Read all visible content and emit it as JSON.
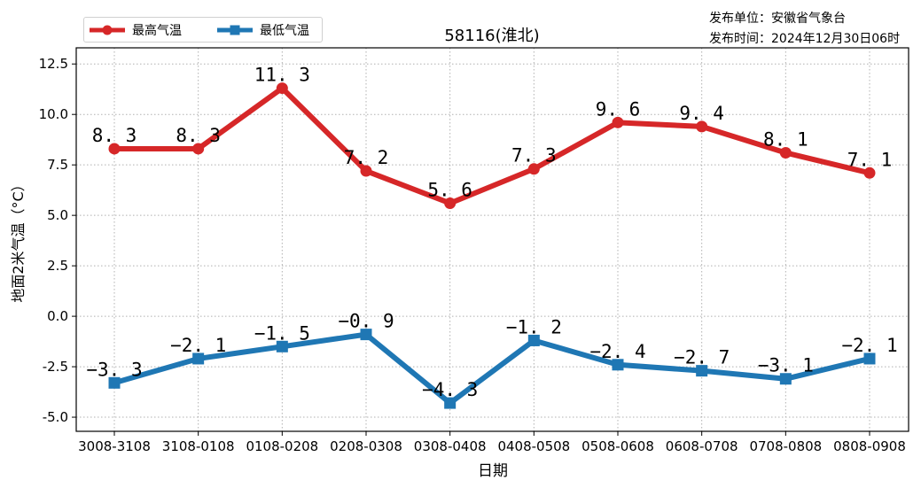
{
  "chart_data": {
    "type": "line",
    "title": "58116(淮北)",
    "xlabel": "日期",
    "ylabel": "地面2米气温（°C）",
    "categories": [
      "3008-3108",
      "3108-0108",
      "0108-0208",
      "0208-0308",
      "0308-0408",
      "0408-0508",
      "0508-0608",
      "0608-0708",
      "0708-0808",
      "0808-0908"
    ],
    "series": [
      {
        "name": "最高气温",
        "color": "#d62728",
        "marker": "circle",
        "values": [
          8.3,
          8.3,
          11.3,
          7.2,
          5.6,
          7.3,
          9.6,
          9.4,
          8.1,
          7.1
        ],
        "labels": [
          "8.3",
          "8.3",
          "11.3",
          "7.2",
          "5.6",
          "7.3",
          "9.6",
          "9.4",
          "8.1",
          "7.1"
        ]
      },
      {
        "name": "最低气温",
        "color": "#1f77b4",
        "marker": "square",
        "values": [
          -3.3,
          -2.1,
          -1.5,
          -0.9,
          -4.3,
          -1.2,
          -2.4,
          -2.7,
          -3.1,
          -2.1
        ],
        "labels": [
          "-3.3",
          "-2.1",
          "-1.5",
          "-0.9",
          "-4.3",
          "-1.2",
          "-2.4",
          "-2.7",
          "-3.1",
          "-2.1"
        ]
      }
    ],
    "yticks": [
      -5.0,
      -2.5,
      0.0,
      2.5,
      5.0,
      7.5,
      10.0,
      12.5
    ],
    "ytick_labels": [
      "-5.0",
      "-2.5",
      "0.0",
      "2.5",
      "5.0",
      "7.5",
      "10.0",
      "12.5"
    ],
    "ylim": [
      -5.7,
      13.3
    ],
    "grid": true,
    "legend_position": "upper left (outside)"
  },
  "publisher": {
    "unit_line": "发布单位：安徽省气象台",
    "time_line": "发布时间：2024年12月30日06时"
  },
  "legend": {
    "items": [
      {
        "label": "最高气温",
        "color": "#d62728"
      },
      {
        "label": "最低气温",
        "color": "#1f77b4"
      }
    ]
  }
}
